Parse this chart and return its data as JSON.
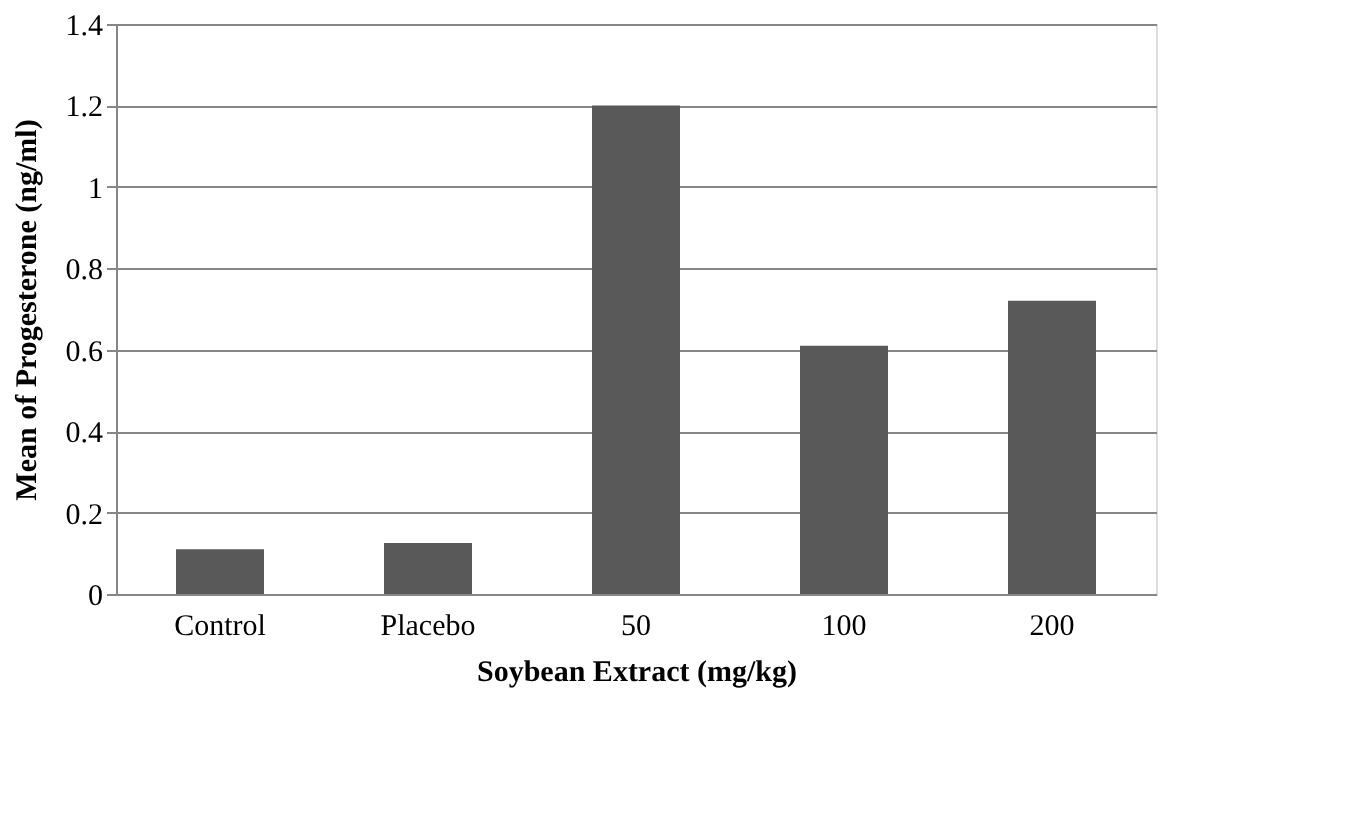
{
  "chart_data": {
    "type": "bar",
    "categories": [
      "Control",
      "Placebo",
      "50",
      "100",
      "200"
    ],
    "values": [
      0.11,
      0.125,
      1.2,
      0.61,
      0.72
    ],
    "color": "#595959",
    "xlabel": "Soybean Extract (mg/kg)",
    "ylabel": "Mean of Progesterone (ng/ml)",
    "ylim": [
      0,
      1.4
    ],
    "yticks": [
      0,
      0.2,
      0.4,
      0.6,
      0.8,
      1,
      1.2,
      1.4
    ],
    "grid": "y"
  }
}
